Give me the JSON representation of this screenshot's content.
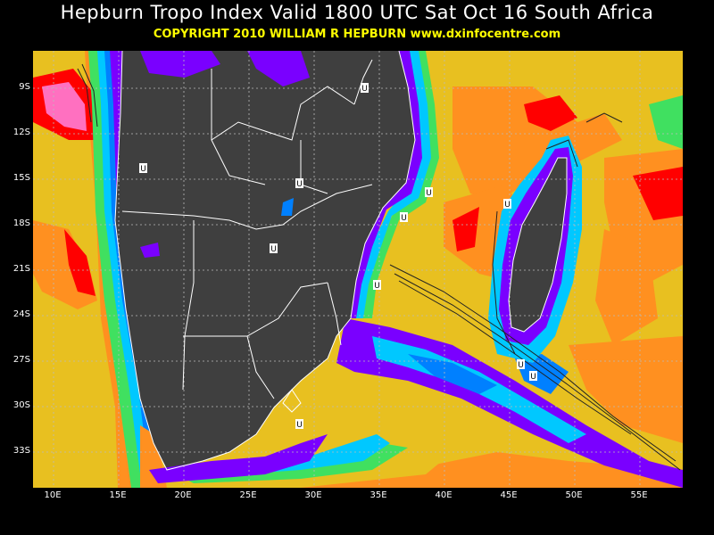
{
  "header": {
    "title": "Hepburn Tropo Index Valid 1800 UTC Sat Oct 16 South Africa",
    "copyright": "COPYRIGHT 2010   WILLIAM R HEPBURN   www.dxinfocentre.com"
  },
  "map": {
    "lat_labels": [
      "9S",
      "12S",
      "15S",
      "18S",
      "21S",
      "24S",
      "27S",
      "30S",
      "33S"
    ],
    "lon_labels": [
      "10E",
      "15E",
      "20E",
      "25E",
      "30E",
      "35E",
      "40E",
      "45E",
      "50E",
      "55E"
    ],
    "marker_symbol": "U",
    "colors": {
      "land": "#3f3f3f",
      "purple": "#7a00ff",
      "blue": "#0080ff",
      "cyan": "#00c8ff",
      "green": "#40e060",
      "yellow": "#f0e030",
      "gold": "#e8c020",
      "orange": "#ff9020",
      "red": "#ff0000",
      "pink": "#ff70c0"
    }
  }
}
